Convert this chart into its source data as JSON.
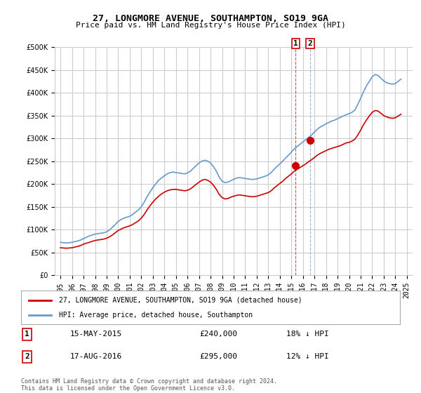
{
  "title": "27, LONGMORE AVENUE, SOUTHAMPTON, SO19 9GA",
  "subtitle": "Price paid vs. HM Land Registry's House Price Index (HPI)",
  "ylabel_ticks": [
    "£0",
    "£50K",
    "£100K",
    "£150K",
    "£200K",
    "£250K",
    "£300K",
    "£350K",
    "£400K",
    "£450K",
    "£500K"
  ],
  "ytick_vals": [
    0,
    50000,
    100000,
    150000,
    200000,
    250000,
    300000,
    350000,
    400000,
    450000,
    500000
  ],
  "ylim": [
    0,
    500000
  ],
  "xlim_start": 1995,
  "xlim_end": 2025.5,
  "xtick_years": [
    1995,
    1996,
    1997,
    1998,
    1999,
    2000,
    2001,
    2002,
    2003,
    2004,
    2005,
    2006,
    2007,
    2008,
    2009,
    2010,
    2011,
    2012,
    2013,
    2014,
    2015,
    2016,
    2017,
    2018,
    2019,
    2020,
    2021,
    2022,
    2023,
    2024,
    2025
  ],
  "red_line_color": "#cc0000",
  "blue_line_color": "#6699cc",
  "vline1_x": 2015.37,
  "vline2_x": 2016.63,
  "vline_color": "#cc0000",
  "point1_x": 2015.37,
  "point1_y": 240000,
  "point2_x": 2016.63,
  "point2_y": 295000,
  "legend_label_red": "27, LONGMORE AVENUE, SOUTHAMPTON, SO19 9GA (detached house)",
  "legend_label_blue": "HPI: Average price, detached house, Southampton",
  "transaction1_label": "1",
  "transaction1_date": "15-MAY-2015",
  "transaction1_price": "£240,000",
  "transaction1_hpi": "18% ↓ HPI",
  "transaction2_label": "2",
  "transaction2_date": "17-AUG-2016",
  "transaction2_price": "£295,000",
  "transaction2_hpi": "12% ↓ HPI",
  "footer": "Contains HM Land Registry data © Crown copyright and database right 2024.\nThis data is licensed under the Open Government Licence v3.0.",
  "bg_color": "#ffffff",
  "grid_color": "#cccccc",
  "hpi_blue_data": {
    "years": [
      1995,
      1995.25,
      1995.5,
      1995.75,
      1996,
      1996.25,
      1996.5,
      1996.75,
      1997,
      1997.25,
      1997.5,
      1997.75,
      1998,
      1998.25,
      1998.5,
      1998.75,
      1999,
      1999.25,
      1999.5,
      1999.75,
      2000,
      2000.25,
      2000.5,
      2000.75,
      2001,
      2001.25,
      2001.5,
      2001.75,
      2002,
      2002.25,
      2002.5,
      2002.75,
      2003,
      2003.25,
      2003.5,
      2003.75,
      2004,
      2004.25,
      2004.5,
      2004.75,
      2005,
      2005.25,
      2005.5,
      2005.75,
      2006,
      2006.25,
      2006.5,
      2006.75,
      2007,
      2007.25,
      2007.5,
      2007.75,
      2008,
      2008.25,
      2008.5,
      2008.75,
      2009,
      2009.25,
      2009.5,
      2009.75,
      2010,
      2010.25,
      2010.5,
      2010.75,
      2011,
      2011.25,
      2011.5,
      2011.75,
      2012,
      2012.25,
      2012.5,
      2012.75,
      2013,
      2013.25,
      2013.5,
      2013.75,
      2014,
      2014.25,
      2014.5,
      2014.75,
      2015,
      2015.25,
      2015.5,
      2015.75,
      2016,
      2016.25,
      2016.5,
      2016.75,
      2017,
      2017.25,
      2017.5,
      2017.75,
      2018,
      2018.25,
      2018.5,
      2018.75,
      2019,
      2019.25,
      2019.5,
      2019.75,
      2020,
      2020.25,
      2020.5,
      2020.75,
      2021,
      2021.25,
      2021.5,
      2021.75,
      2022,
      2022.25,
      2022.5,
      2022.75,
      2023,
      2023.25,
      2023.5,
      2023.75,
      2024,
      2024.25,
      2024.5
    ],
    "values": [
      72000,
      71000,
      70500,
      71000,
      72000,
      73500,
      75000,
      77000,
      80000,
      83000,
      86000,
      88000,
      90000,
      91000,
      92000,
      93000,
      95000,
      99000,
      105000,
      111000,
      118000,
      122000,
      125000,
      127000,
      129000,
      133000,
      138000,
      143000,
      150000,
      160000,
      172000,
      182000,
      192000,
      200000,
      208000,
      213000,
      218000,
      222000,
      225000,
      226000,
      225000,
      224000,
      223000,
      222000,
      224000,
      228000,
      234000,
      240000,
      246000,
      250000,
      252000,
      250000,
      246000,
      238000,
      228000,
      215000,
      206000,
      203000,
      204000,
      207000,
      210000,
      213000,
      214000,
      213000,
      212000,
      211000,
      210000,
      210000,
      211000,
      213000,
      215000,
      217000,
      220000,
      225000,
      232000,
      238000,
      244000,
      250000,
      257000,
      263000,
      270000,
      277000,
      282000,
      287000,
      292000,
      297000,
      302000,
      307000,
      314000,
      320000,
      325000,
      328000,
      332000,
      335000,
      338000,
      340000,
      343000,
      346000,
      349000,
      352000,
      354000,
      357000,
      362000,
      374000,
      388000,
      402000,
      415000,
      425000,
      435000,
      440000,
      438000,
      432000,
      426000,
      422000,
      420000,
      419000,
      420000,
      425000,
      430000
    ]
  },
  "red_hpi_data": {
    "years": [
      1995,
      1995.25,
      1995.5,
      1995.75,
      1996,
      1996.25,
      1996.5,
      1996.75,
      1997,
      1997.25,
      1997.5,
      1997.75,
      1998,
      1998.25,
      1998.5,
      1998.75,
      1999,
      1999.25,
      1999.5,
      1999.75,
      2000,
      2000.25,
      2000.5,
      2000.75,
      2001,
      2001.25,
      2001.5,
      2001.75,
      2002,
      2002.25,
      2002.5,
      2002.75,
      2003,
      2003.25,
      2003.5,
      2003.75,
      2004,
      2004.25,
      2004.5,
      2004.75,
      2005,
      2005.25,
      2005.5,
      2005.75,
      2006,
      2006.25,
      2006.5,
      2006.75,
      2007,
      2007.25,
      2007.5,
      2007.75,
      2008,
      2008.25,
      2008.5,
      2008.75,
      2009,
      2009.25,
      2009.5,
      2009.75,
      2010,
      2010.25,
      2010.5,
      2010.75,
      2011,
      2011.25,
      2011.5,
      2011.75,
      2012,
      2012.25,
      2012.5,
      2012.75,
      2013,
      2013.25,
      2013.5,
      2013.75,
      2014,
      2014.25,
      2014.5,
      2014.75,
      2015,
      2015.25,
      2015.5,
      2015.75,
      2016,
      2016.25,
      2016.5,
      2016.75,
      2017,
      2017.25,
      2017.5,
      2017.75,
      2018,
      2018.25,
      2018.5,
      2018.75,
      2019,
      2019.25,
      2019.5,
      2019.75,
      2020,
      2020.25,
      2020.5,
      2020.75,
      2021,
      2021.25,
      2021.5,
      2021.75,
      2022,
      2022.25,
      2022.5,
      2022.75,
      2023,
      2023.25,
      2023.5,
      2023.75,
      2024,
      2024.25,
      2024.5
    ],
    "values": [
      60000,
      59500,
      59000,
      59500,
      60000,
      61500,
      63000,
      65000,
      68000,
      70000,
      72000,
      74000,
      76000,
      77000,
      78000,
      79000,
      81000,
      84000,
      88000,
      93000,
      98000,
      101000,
      104000,
      106000,
      108000,
      111000,
      115000,
      119000,
      125000,
      133000,
      143000,
      152000,
      160000,
      167000,
      173000,
      178000,
      182000,
      185000,
      187000,
      188000,
      188000,
      187000,
      186000,
      185000,
      186000,
      189000,
      194000,
      199000,
      204000,
      208000,
      210000,
      208000,
      204000,
      197000,
      188000,
      177000,
      170000,
      167000,
      168000,
      171000,
      173000,
      175000,
      176000,
      175000,
      174000,
      173000,
      172000,
      172000,
      173000,
      175000,
      177000,
      179000,
      181000,
      185000,
      191000,
      196000,
      201000,
      206000,
      212000,
      217000,
      222000,
      228000,
      232000,
      236000,
      240000,
      244000,
      249000,
      253000,
      258000,
      263000,
      267000,
      270000,
      273000,
      276000,
      278000,
      280000,
      282000,
      284000,
      287000,
      290000,
      291000,
      294000,
      298000,
      307000,
      318000,
      330000,
      340000,
      349000,
      357000,
      361000,
      360000,
      355000,
      350000,
      347000,
      345000,
      344000,
      345000,
      349000,
      353000
    ]
  }
}
